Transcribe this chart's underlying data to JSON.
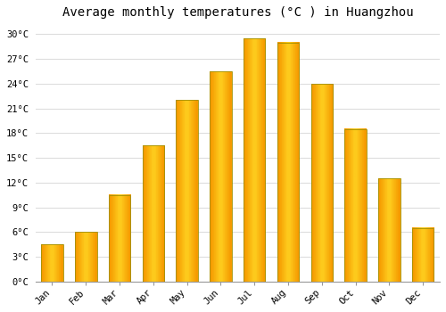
{
  "title": "Average monthly temperatures (°C ) in Huangzhou",
  "months": [
    "Jan",
    "Feb",
    "Mar",
    "Apr",
    "May",
    "Jun",
    "Jul",
    "Aug",
    "Sep",
    "Oct",
    "Nov",
    "Dec"
  ],
  "values": [
    4.5,
    6.0,
    10.5,
    16.5,
    22.0,
    25.5,
    29.5,
    29.0,
    24.0,
    18.5,
    12.5,
    6.5
  ],
  "bar_color_main": "#FFA500",
  "bar_color_light": "#FFD040",
  "bar_edge_color": "#A09000",
  "background_color": "#FFFFFF",
  "plot_bg_color": "#FFFFFF",
  "grid_color": "#DDDDDD",
  "ylim": [
    0,
    31
  ],
  "yticks": [
    0,
    3,
    6,
    9,
    12,
    15,
    18,
    21,
    24,
    27,
    30
  ],
  "ytick_labels": [
    "0°C",
    "3°C",
    "6°C",
    "9°C",
    "12°C",
    "15°C",
    "18°C",
    "21°C",
    "24°C",
    "27°C",
    "30°C"
  ],
  "title_fontsize": 10,
  "tick_fontsize": 7.5,
  "font_family": "monospace",
  "bar_width": 0.65
}
